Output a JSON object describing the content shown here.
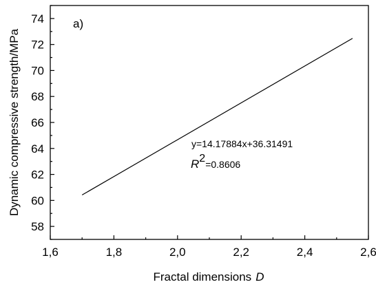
{
  "chart_data": {
    "type": "line",
    "panel_label": "a)",
    "xlabel": "Fractal dimensions",
    "xlabel_var": "D",
    "ylabel": "Dynamic compressive strength/MPa",
    "xlim": [
      1.6,
      2.6
    ],
    "ylim": [
      57,
      75
    ],
    "x_ticks": [
      1.6,
      1.8,
      2.0,
      2.2,
      2.4,
      2.6
    ],
    "x_tick_labels": [
      "1,6",
      "1,8",
      "2,0",
      "2,2",
      "2,4",
      "2,6"
    ],
    "y_ticks": [
      58,
      60,
      62,
      64,
      66,
      68,
      70,
      72,
      74
    ],
    "y_tick_labels": [
      "58",
      "60",
      "62",
      "64",
      "66",
      "68",
      "70",
      "72",
      "74"
    ],
    "grid": false,
    "series": [
      {
        "x": [
          1.7,
          2.55
        ],
        "y": [
          60.42,
          72.47
        ]
      }
    ],
    "annotations": {
      "equation": "y=14.17884x+36.31491",
      "r2_symbol": "R",
      "r2_exp": "2",
      "r2_value": "=0.8606"
    }
  }
}
